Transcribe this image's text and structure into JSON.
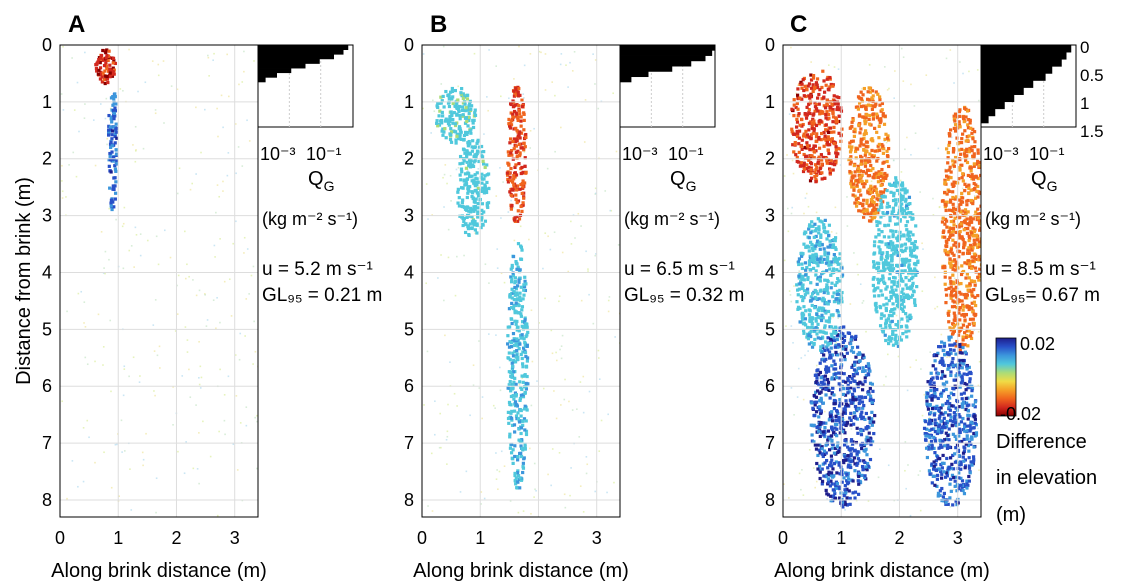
{
  "figure": {
    "ylabel": "Distance from brink (m)",
    "xlabel": "Along brink distance (m)",
    "colorbar": {
      "max_label": "0.02",
      "min_label": "-0.02",
      "title_lines": [
        "Difference",
        "in elevation",
        "(m)"
      ],
      "colors": [
        "#8b0000",
        "#d2281e",
        "#f0641e",
        "#f5a028",
        "#f0dc46",
        "#aadc78",
        "#50c8dc",
        "#3c96dc",
        "#2850c8",
        "#1e1e8c"
      ]
    },
    "qg_units": "(kg m⁻² s⁻¹)"
  },
  "chart_data": [
    {
      "type": "heatmap",
      "panel": "A",
      "xlabel": "Along brink distance (m)",
      "ylabel": "Distance from brink (m)",
      "xlim": [
        0,
        3.4
      ],
      "ylim": [
        0,
        8.3
      ],
      "xticks": [
        "0",
        "1",
        "2",
        "3"
      ],
      "yticks": [
        "0",
        "1",
        "2",
        "3",
        "4",
        "5",
        "6",
        "7",
        "8"
      ],
      "grid": true,
      "annotation_u": "u = 5.2 m s⁻¹",
      "annotation_gl": "GL₉₅ = 0.21 m",
      "patches": [
        {
          "x": 0.75,
          "y": 0.35,
          "rx": 0.18,
          "ry": 0.3,
          "dz": -0.02
        },
        {
          "x": 0.88,
          "y": 1.8,
          "rx": 0.08,
          "ry": 1.1,
          "dz": 0.018
        }
      ],
      "inset": {
        "xlabel": "Q_G",
        "xunits": "(kg m⁻² s⁻¹)",
        "xticks": [
          "10⁻³",
          "10⁻¹"
        ],
        "yticks": [],
        "profile": [
          0.95,
          0.9,
          0.8,
          0.65,
          0.5,
          0.35,
          0.2,
          0.08
        ]
      }
    },
    {
      "type": "heatmap",
      "panel": "B",
      "xlabel": "Along brink distance (m)",
      "ylabel": "",
      "xlim": [
        0,
        3.4
      ],
      "ylim": [
        0,
        8.3
      ],
      "xticks": [
        "0",
        "1",
        "2",
        "3"
      ],
      "yticks": [
        "0",
        "1",
        "2",
        "3",
        "4",
        "5",
        "6",
        "7",
        "8"
      ],
      "grid": true,
      "annotation_u": "u = 6.5 m s⁻¹",
      "annotation_gl": "GL₉₅ = 0.32 m",
      "patches": [
        {
          "x": 1.6,
          "y": 1.9,
          "rx": 0.17,
          "ry": 1.2,
          "dz": -0.017
        },
        {
          "x": 1.62,
          "y": 5.6,
          "rx": 0.18,
          "ry": 2.2,
          "dz": 0.01
        },
        {
          "x": 0.85,
          "y": 2.5,
          "rx": 0.28,
          "ry": 0.9,
          "dz": 0.008
        },
        {
          "x": 0.55,
          "y": 1.2,
          "rx": 0.35,
          "ry": 0.5,
          "dz": 0.007
        }
      ],
      "inset": {
        "xlabel": "Q_G",
        "xunits": "(kg m⁻² s⁻¹)",
        "xticks": [
          "10⁻³",
          "10⁻¹"
        ],
        "yticks": [],
        "profile": [
          1.0,
          0.97,
          0.9,
          0.75,
          0.55,
          0.3,
          0.12
        ]
      }
    },
    {
      "type": "heatmap",
      "panel": "C",
      "xlabel": "Along brink distance (m)",
      "ylabel": "",
      "xlim": [
        0,
        3.4
      ],
      "ylim": [
        0,
        8.3
      ],
      "xticks": [
        "0",
        "1",
        "2",
        "3"
      ],
      "yticks": [
        "0",
        "1",
        "2",
        "3",
        "4",
        "5",
        "6",
        "7",
        "8"
      ],
      "grid": true,
      "annotation_u": "u = 8.5 m s⁻¹",
      "annotation_gl": "GL₉₅= 0.67 m",
      "patches": [
        {
          "x": 0.55,
          "y": 1.4,
          "rx": 0.45,
          "ry": 1.0,
          "dz": -0.018
        },
        {
          "x": 1.45,
          "y": 1.9,
          "rx": 0.35,
          "ry": 1.2,
          "dz": -0.012
        },
        {
          "x": 3.05,
          "y": 3.2,
          "rx": 0.35,
          "ry": 2.2,
          "dz": -0.013
        },
        {
          "x": 1.0,
          "y": 6.5,
          "rx": 0.55,
          "ry": 1.6,
          "dz": 0.02
        },
        {
          "x": 2.85,
          "y": 6.6,
          "rx": 0.45,
          "ry": 1.5,
          "dz": 0.019
        },
        {
          "x": 1.9,
          "y": 3.8,
          "rx": 0.4,
          "ry": 1.5,
          "dz": 0.009
        },
        {
          "x": 0.6,
          "y": 4.2,
          "rx": 0.4,
          "ry": 1.2,
          "dz": 0.01
        }
      ],
      "inset": {
        "xlabel": "Q_G",
        "xunits": "(kg m⁻² s⁻¹)",
        "xticks": [
          "10⁻³",
          "10⁻¹"
        ],
        "yticks": [
          "0",
          "0.5",
          "1",
          "1.5"
        ],
        "profile": [
          0.95,
          0.9,
          0.85,
          0.75,
          0.68,
          0.55,
          0.45,
          0.35,
          0.25,
          0.15,
          0.08
        ]
      }
    }
  ]
}
